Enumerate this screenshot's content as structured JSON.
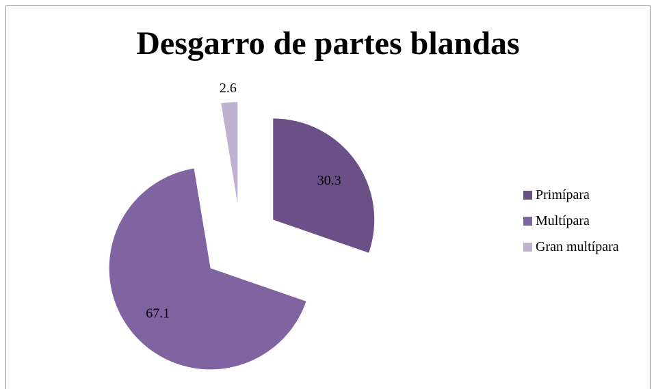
{
  "chart_data": {
    "type": "pie",
    "title": "Desgarro de partes blandas",
    "categories": [
      "Primípara",
      "Multípara",
      "Gran multípara"
    ],
    "values": [
      30.3,
      67.1,
      2.6
    ],
    "colors": [
      "#6a5087",
      "#8064a2",
      "#bfb1d0"
    ],
    "exploded": true,
    "legend_position": "right"
  }
}
